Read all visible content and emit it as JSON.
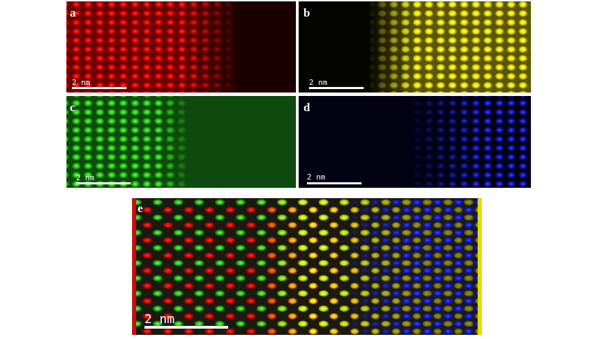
{
  "panels": [
    {
      "label": "a",
      "scale_bar": "2 nm"
    },
    {
      "label": "b",
      "scale_bar": "2 nm"
    },
    {
      "label": "c",
      "scale_bar": "2 nm"
    },
    {
      "label": "d",
      "scale_bar": "2 nm"
    },
    {
      "label": "e",
      "scale_bar": "2 nm"
    }
  ]
}
